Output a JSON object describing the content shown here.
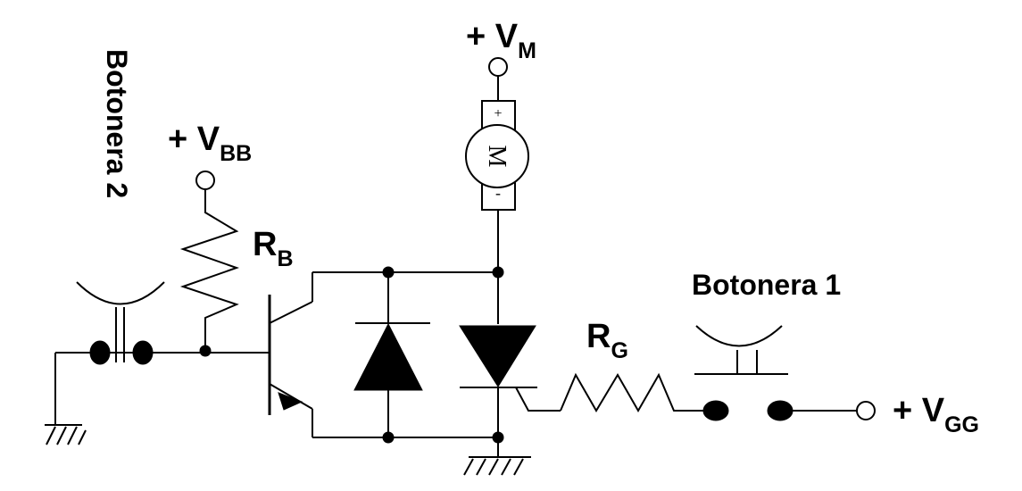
{
  "labels": {
    "vm": {
      "prefix": "+ V",
      "sub": "M"
    },
    "vbb": {
      "prefix": "+ V",
      "sub": "BB"
    },
    "vgg": {
      "prefix": "+ V",
      "sub": "GG"
    },
    "rb": {
      "main": "R",
      "sub": "B"
    },
    "rg": {
      "main": "R",
      "sub": "G"
    },
    "botonera1": "Botonera 1",
    "botonera2": "Botonera 2",
    "motor": {
      "letter": "M",
      "plus": "+",
      "minus": "-"
    }
  },
  "colors": {
    "line": "#000000",
    "background": "#ffffff"
  }
}
